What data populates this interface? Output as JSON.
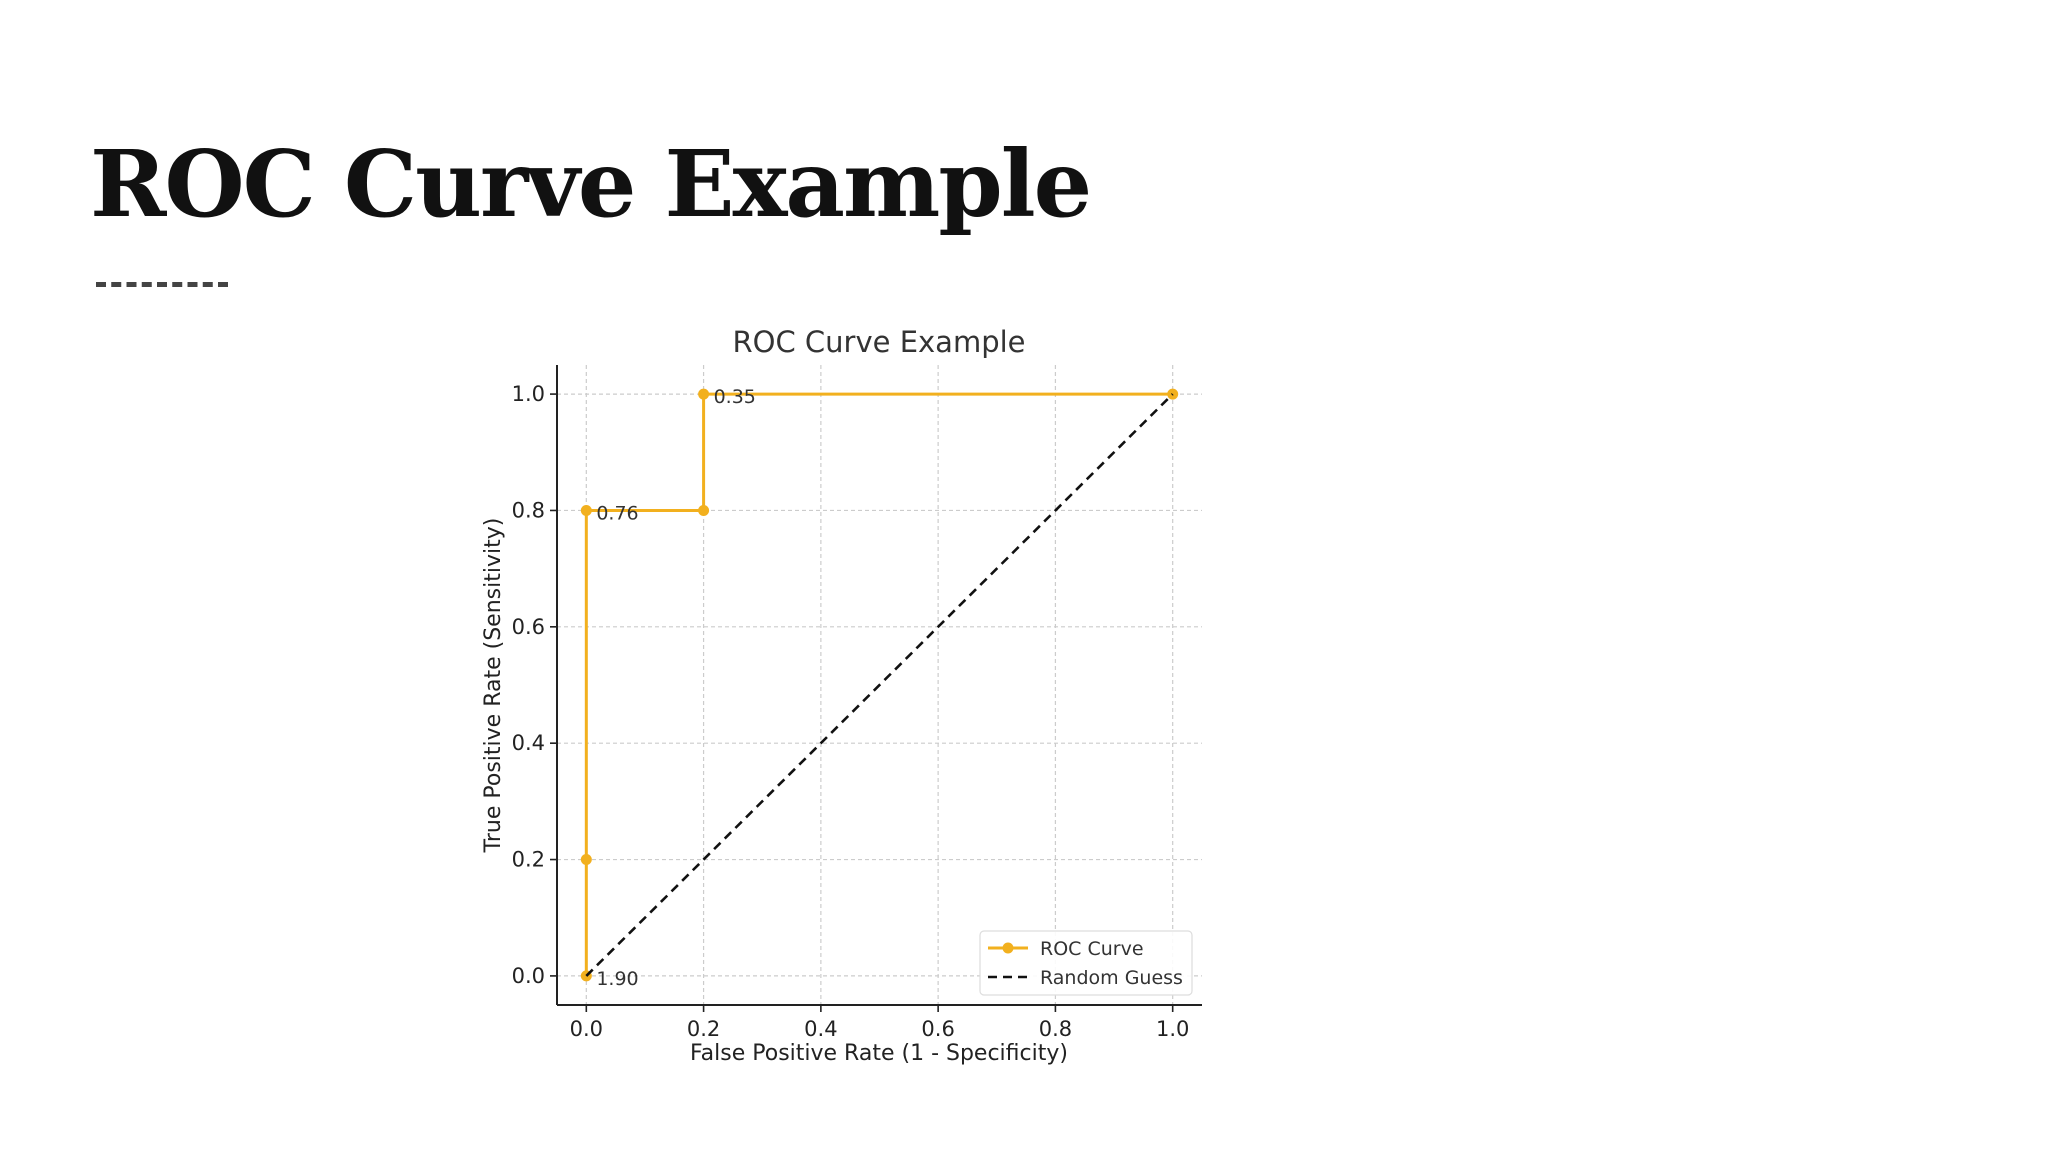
{
  "slide": {
    "title": "ROC Curve Example"
  },
  "chart_data": {
    "type": "line",
    "title": "ROC Curve Example",
    "xlabel": "False Positive Rate (1 - Specificity)",
    "ylabel": "True Positive Rate (Sensitivity)",
    "xlim": [
      -0.05,
      1.05
    ],
    "ylim": [
      -0.05,
      1.05
    ],
    "xticks": [
      0.0,
      0.2,
      0.4,
      0.6,
      0.8,
      1.0
    ],
    "yticks": [
      0.0,
      0.2,
      0.4,
      0.6,
      0.8,
      1.0
    ],
    "tick_labels": [
      "0.0",
      "0.2",
      "0.4",
      "0.6",
      "0.8",
      "1.0"
    ],
    "grid": true,
    "legend_position": "lower-right",
    "series": [
      {
        "name": "ROC Curve",
        "style": "solid-with-markers",
        "color": "#F2B01E",
        "x": [
          0.0,
          0.0,
          0.0,
          0.2,
          0.2,
          1.0
        ],
        "y": [
          0.0,
          0.2,
          0.8,
          0.8,
          1.0,
          1.0
        ]
      },
      {
        "name": "Random Guess",
        "style": "dashed",
        "color": "#111111",
        "x": [
          0.0,
          1.0
        ],
        "y": [
          0.0,
          1.0
        ]
      }
    ],
    "annotations": [
      {
        "text": "1.90",
        "x": 0.0,
        "y": 0.0
      },
      {
        "text": "0.76",
        "x": 0.0,
        "y": 0.8
      },
      {
        "text": "0.35",
        "x": 0.2,
        "y": 1.0
      }
    ]
  }
}
